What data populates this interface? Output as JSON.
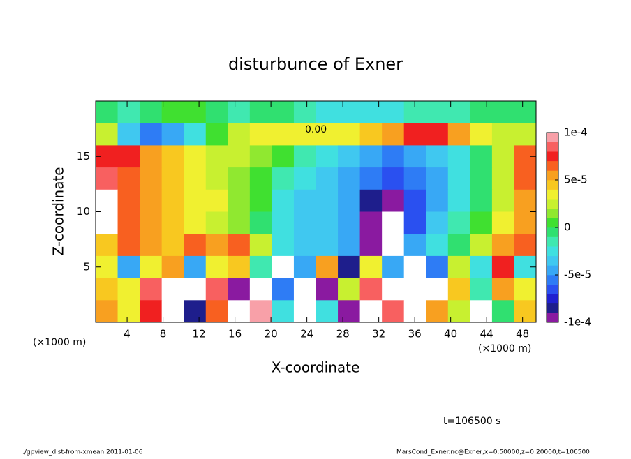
{
  "chart_data": {
    "type": "contour",
    "title": "disturbunce of Exner",
    "x_label": "X-coordinate",
    "y_label": "Z-coordinate",
    "x_units": "(×1000 m)",
    "time_label": "t=106500 s",
    "footer_left": "./gpview_dist-from-xmean  2011-01-06",
    "footer_right": "MarsCond_Exner.nc@Exner,x=0:50000,z=0:20000,t=106500",
    "contour_label": "0.00",
    "xlim": [
      0.5,
      49.5
    ],
    "ylim": [
      0,
      20
    ],
    "xticks": [
      4,
      8,
      12,
      16,
      20,
      24,
      28,
      32,
      36,
      40,
      44,
      48
    ],
    "yticks": [
      5,
      10,
      15
    ],
    "colorbar": {
      "lim": [
        -0.0001,
        0.0001
      ],
      "ticks": [
        {
          "value": 0.0001,
          "label": "1e-4"
        },
        {
          "value": 5e-05,
          "label": "5e-5"
        },
        0,
        {
          "value": -5e-05,
          "label": "-5e-5"
        },
        {
          "value": -0.0001,
          "label": "-1e-4"
        }
      ],
      "colors": [
        "#8a1aa0",
        "#1e1e8c",
        "#2020d0",
        "#2a50f0",
        "#2e7cf5",
        "#38a8f5",
        "#40c8f0",
        "#40e0e0",
        "#40e8b0",
        "#30e070",
        "#40e030",
        "#90e830",
        "#c8f030",
        "#f0f030",
        "#f8c820",
        "#f8a020",
        "#f86020",
        "#f02020",
        "#f86060",
        "#f8a0a8"
      ]
    },
    "z": [
      [
        -1e-05,
        -2e-05,
        -1e-05,
        0,
        0,
        -1e-05,
        -2e-05,
        -1e-05,
        -1e-05,
        -2e-05,
        -3e-05,
        -3e-05,
        -3e-05,
        -3e-05,
        -2e-05,
        -2e-05,
        -2e-05,
        -1e-05,
        -1e-05,
        -1e-05
      ],
      [
        2e-05,
        -4e-05,
        -6e-05,
        -5e-05,
        -3e-05,
        0,
        2e-05,
        3e-05,
        3e-05,
        3e-05,
        3e-05,
        3e-05,
        4e-05,
        5e-05,
        7e-05,
        7e-05,
        5e-05,
        3e-05,
        2e-05,
        2e-05
      ],
      [
        7e-05,
        7e-05,
        5e-05,
        4e-05,
        3e-05,
        2e-05,
        2e-05,
        1e-05,
        0,
        -2e-05,
        -3e-05,
        -4e-05,
        -5e-05,
        -6e-05,
        -5e-05,
        -4e-05,
        -3e-05,
        -1e-05,
        2e-05,
        6e-05
      ],
      [
        8e-05,
        6e-05,
        5e-05,
        4e-05,
        3e-05,
        2e-05,
        1e-05,
        0,
        -2e-05,
        -3e-05,
        -4e-05,
        -5e-05,
        -6e-05,
        -7e-05,
        -6e-05,
        -5e-05,
        -3e-05,
        -1e-05,
        2e-05,
        6e-05
      ],
      [
        0.00012,
        6e-05,
        5e-05,
        4e-05,
        3e-05,
        3e-05,
        1e-05,
        0,
        -3e-05,
        -4e-05,
        -4e-05,
        -5e-05,
        -8e-05,
        -9e-05,
        -7e-05,
        -5e-05,
        -3e-05,
        -1e-05,
        2e-05,
        5e-05
      ],
      [
        0.00012,
        6e-05,
        5e-05,
        4e-05,
        3e-05,
        2e-05,
        1e-05,
        -1e-05,
        -3e-05,
        -4e-05,
        -4e-05,
        -5e-05,
        -0.0001,
        -0.00012,
        -7e-05,
        -4e-05,
        -2e-05,
        0,
        3e-05,
        5e-05
      ],
      [
        4e-05,
        6e-05,
        5e-05,
        4e-05,
        6e-05,
        5e-05,
        6e-05,
        2e-05,
        -3e-05,
        -4e-05,
        -4e-05,
        -5e-05,
        -0.0001,
        -0.00012,
        -5e-05,
        -3e-05,
        -1e-05,
        2e-05,
        5e-05,
        6e-05
      ],
      [
        3e-05,
        -5e-05,
        3e-05,
        5e-05,
        -5e-05,
        3e-05,
        4e-05,
        -2e-05,
        0.00012,
        -5e-05,
        5e-05,
        -8e-05,
        3e-05,
        -5e-05,
        0.00012,
        -6e-05,
        2e-05,
        -3e-05,
        7e-05,
        -3e-05
      ],
      [
        4e-05,
        3e-05,
        8e-05,
        0.00012,
        -0.00012,
        8e-05,
        -0.0001,
        0.00012,
        -6e-05,
        0.00012,
        -9e-05,
        2e-05,
        8e-05,
        0.00012,
        -0.00012,
        0.00012,
        4e-05,
        -2e-05,
        5e-05,
        3e-05
      ],
      [
        5e-05,
        3e-05,
        7e-05,
        0.00012,
        -8e-05,
        6e-05,
        -0.00012,
        9e-05,
        -3e-05,
        0.00012,
        -3e-05,
        -9e-05,
        0.00012,
        8e-05,
        0.00012,
        5e-05,
        2e-05,
        0.00012,
        -1e-05,
        4e-05
      ]
    ]
  }
}
